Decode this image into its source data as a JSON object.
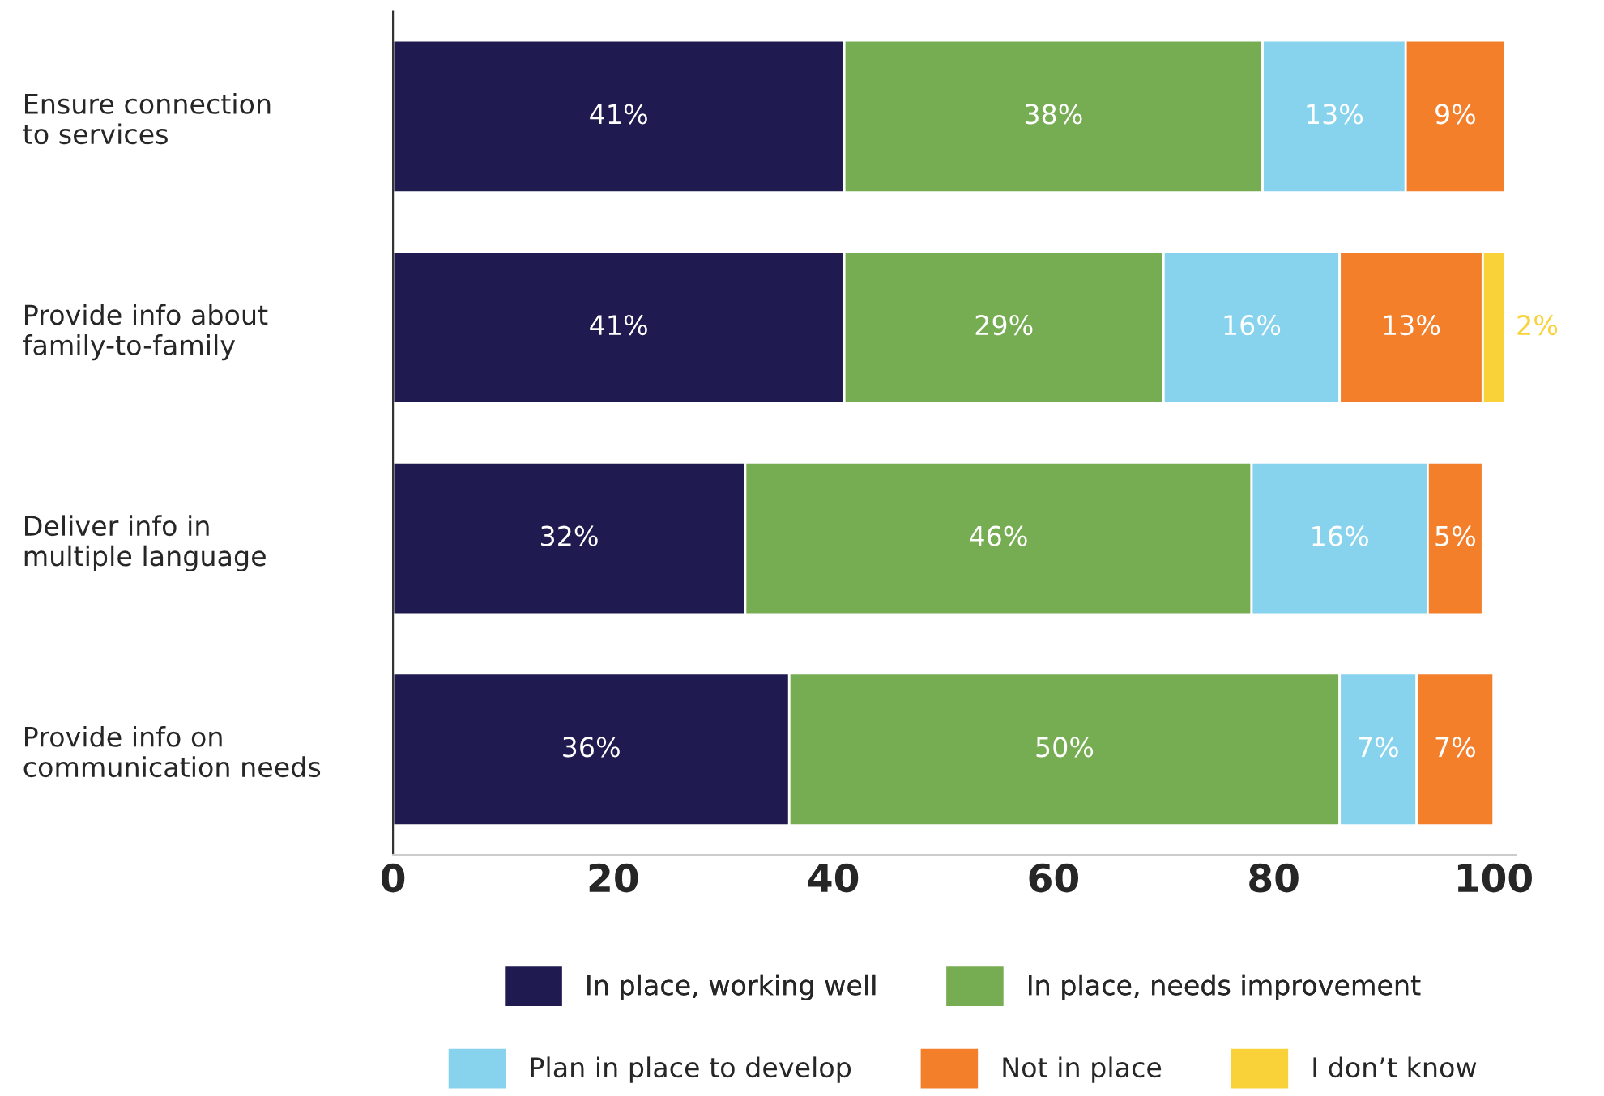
{
  "chart_data": {
    "type": "bar",
    "orientation": "horizontal",
    "stacked": true,
    "categories": [
      "Ensure connection\nto services",
      "Provide info about\nfamily-to-family",
      "Deliver info in\nmultiple language",
      "Provide info on\ncommunication needs"
    ],
    "series": [
      {
        "name": "In place, working well",
        "color": "#1f1a4f",
        "values": [
          41,
          41,
          32,
          36
        ],
        "value_labels": [
          "41%",
          "41%",
          "32%",
          "36%"
        ]
      },
      {
        "name": "In place, needs improvement",
        "color": "#77ad52",
        "values": [
          38,
          29,
          46,
          50
        ],
        "value_labels": [
          "38%",
          "29%",
          "46%",
          "50%"
        ]
      },
      {
        "name": "Plan in place to develop",
        "color": "#87d3ee",
        "values": [
          13,
          16,
          16,
          7
        ],
        "value_labels": [
          "13%",
          "16%",
          "16%",
          "7%"
        ]
      },
      {
        "name": "Not in place",
        "color": "#f37f2b",
        "values": [
          9,
          13,
          5,
          7
        ],
        "value_labels": [
          "9%",
          "13%",
          "5%",
          "7%"
        ]
      },
      {
        "name": "I don’t know",
        "color": "#f9d23a",
        "values": [
          null,
          2,
          null,
          null
        ],
        "value_labels": [
          null,
          "2%",
          null,
          null
        ]
      }
    ],
    "xlim": [
      0,
      102
    ],
    "xticks": [
      0,
      20,
      40,
      60,
      80,
      100
    ],
    "grid": false,
    "legend": "bottom"
  }
}
